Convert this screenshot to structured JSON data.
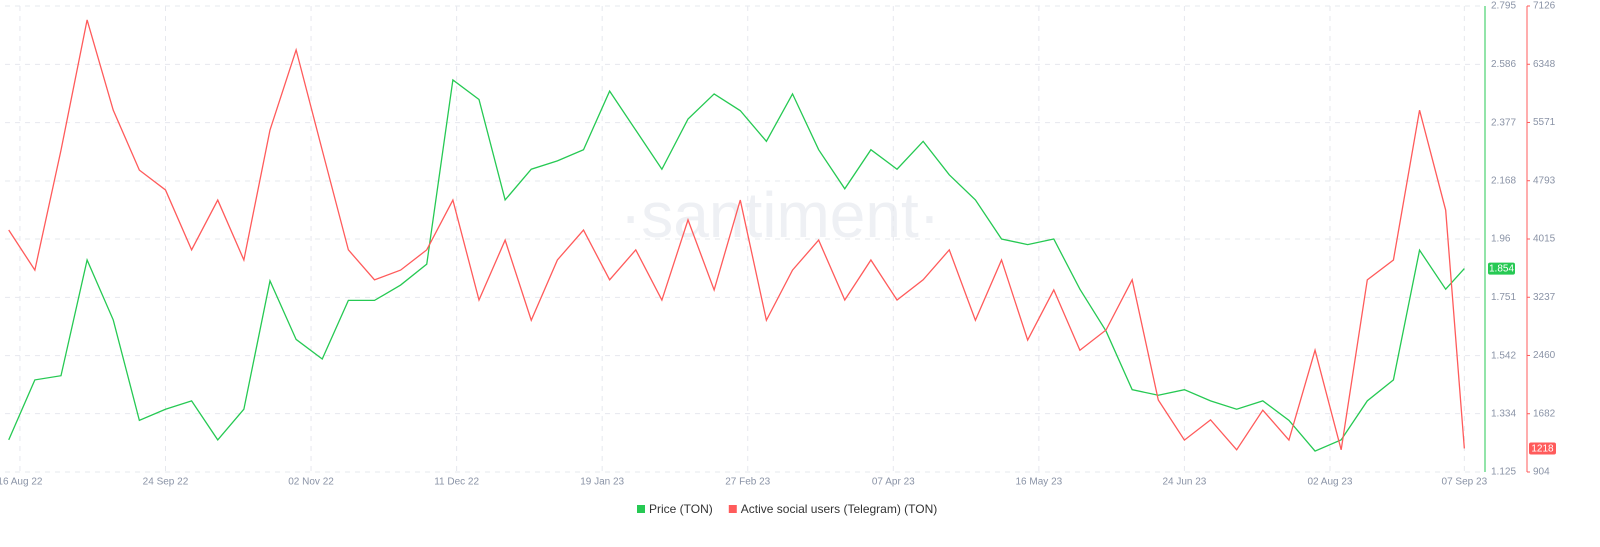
{
  "chart_data": {
    "type": "line",
    "watermark": "·santiment·",
    "x": [
      "2022-08-13",
      "2022-08-20",
      "2022-08-27",
      "2022-09-03",
      "2022-09-10",
      "2022-09-17",
      "2022-09-24",
      "2022-10-01",
      "2022-10-08",
      "2022-10-15",
      "2022-10-22",
      "2022-10-29",
      "2022-11-05",
      "2022-11-12",
      "2022-11-19",
      "2022-11-26",
      "2022-12-03",
      "2022-12-10",
      "2022-12-17",
      "2022-12-24",
      "2022-12-31",
      "2023-01-07",
      "2023-01-14",
      "2023-01-21",
      "2023-01-28",
      "2023-02-04",
      "2023-02-11",
      "2023-02-18",
      "2023-02-25",
      "2023-03-04",
      "2023-03-11",
      "2023-03-18",
      "2023-03-25",
      "2023-04-01",
      "2023-04-08",
      "2023-04-15",
      "2023-04-22",
      "2023-04-29",
      "2023-05-06",
      "2023-05-13",
      "2023-05-20",
      "2023-05-27",
      "2023-06-03",
      "2023-06-10",
      "2023-06-17",
      "2023-06-24",
      "2023-07-01",
      "2023-07-08",
      "2023-07-15",
      "2023-07-22",
      "2023-07-29",
      "2023-08-05",
      "2023-08-12",
      "2023-08-19",
      "2023-08-26",
      "2023-09-02",
      "2023-09-07"
    ],
    "xlim": [
      "2022-08-12",
      "2023-09-12"
    ],
    "xticks": [
      {
        "value": "2022-08-16",
        "label": "16 Aug 22"
      },
      {
        "value": "2022-09-24",
        "label": "24 Sep 22"
      },
      {
        "value": "2022-11-02",
        "label": "02 Nov 22"
      },
      {
        "value": "2022-12-11",
        "label": "11 Dec 22"
      },
      {
        "value": "2023-01-19",
        "label": "19 Jan 23"
      },
      {
        "value": "2023-02-27",
        "label": "27 Feb 23"
      },
      {
        "value": "2023-04-07",
        "label": "07 Apr 23"
      },
      {
        "value": "2023-05-16",
        "label": "16 May 23"
      },
      {
        "value": "2023-06-24",
        "label": "24 Jun 23"
      },
      {
        "value": "2023-08-02",
        "label": "02 Aug 23"
      },
      {
        "value": "2023-09-07",
        "label": "07 Sep 23"
      }
    ],
    "ylim": [
      1.125,
      2.795
    ],
    "yticks": [
      1.125,
      1.334,
      1.542,
      1.751,
      1.96,
      2.168,
      2.377,
      2.586,
      2.795
    ],
    "y2lim": [
      904,
      7126
    ],
    "y2ticks": [
      904,
      1682,
      2460,
      3237,
      4015,
      4793,
      5571,
      6348,
      7126
    ],
    "grid": true,
    "series": [
      {
        "name": "Price (TON)",
        "color": "#26c953",
        "values": [
          1.24,
          1.455,
          1.47,
          1.885,
          1.67,
          1.31,
          1.35,
          1.38,
          1.24,
          1.35,
          1.81,
          1.6,
          1.53,
          1.74,
          1.74,
          1.795,
          1.87,
          2.53,
          2.46,
          2.1,
          2.21,
          2.24,
          2.28,
          2.49,
          2.35,
          2.21,
          2.39,
          2.48,
          2.42,
          2.31,
          2.48,
          2.28,
          2.14,
          2.28,
          2.21,
          2.31,
          2.19,
          2.1,
          1.96,
          1.94,
          1.96,
          1.78,
          1.63,
          1.42,
          1.4,
          1.42,
          1.38,
          1.35,
          1.38,
          1.31,
          1.2,
          1.24,
          1.38,
          1.455,
          1.92,
          1.78,
          1.854
        ]
      },
      {
        "name": "Active social users (Telegram) (TON)",
        "color": "#ff5b5b",
        "axis": "y2",
        "values": [
          4135,
          3600,
          5200,
          6940,
          5735,
          4935,
          4670,
          3870,
          4535,
          3735,
          5470,
          6540,
          5200,
          3870,
          3470,
          3600,
          3870,
          4535,
          3200,
          4000,
          2930,
          3735,
          4135,
          3470,
          3870,
          3200,
          4270,
          3335,
          4535,
          2930,
          3600,
          4000,
          3200,
          3735,
          3200,
          3470,
          3870,
          2930,
          3735,
          2665,
          3335,
          2530,
          2800,
          3470,
          1865,
          1330,
          1600,
          1200,
          1730,
          1330,
          2530,
          1200,
          3470,
          3735,
          5735,
          4400,
          1218
        ]
      }
    ]
  }
}
